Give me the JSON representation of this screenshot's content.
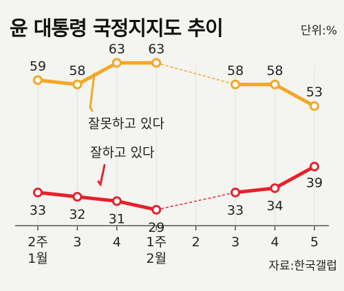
{
  "header": {
    "title": "윤 대통령 국정지지도 추이",
    "unit": "단위:%"
  },
  "source": "자료:한국갤럽",
  "colors": {
    "negative": "#f5a623",
    "positive": "#e8202a",
    "background": "#f4f4f0",
    "axis": "#555555"
  },
  "chart_data": {
    "type": "line",
    "categories": [
      "2주",
      "3",
      "4",
      "1주",
      "2",
      "3",
      "4",
      "5"
    ],
    "category_groups": [
      "1월",
      "",
      "",
      "2월",
      "",
      "",
      "",
      ""
    ],
    "ylim": [
      25,
      68
    ],
    "series": [
      {
        "name": "잘못하고 있다",
        "key": "negative",
        "values": [
          59,
          58,
          63,
          63,
          null,
          58,
          58,
          53
        ],
        "dashed_gap": [
          3,
          5
        ]
      },
      {
        "name": "잘하고 있다",
        "key": "positive",
        "values": [
          33,
          32,
          31,
          29,
          null,
          33,
          34,
          39
        ],
        "dashed_gap": [
          3,
          5
        ]
      }
    ]
  }
}
